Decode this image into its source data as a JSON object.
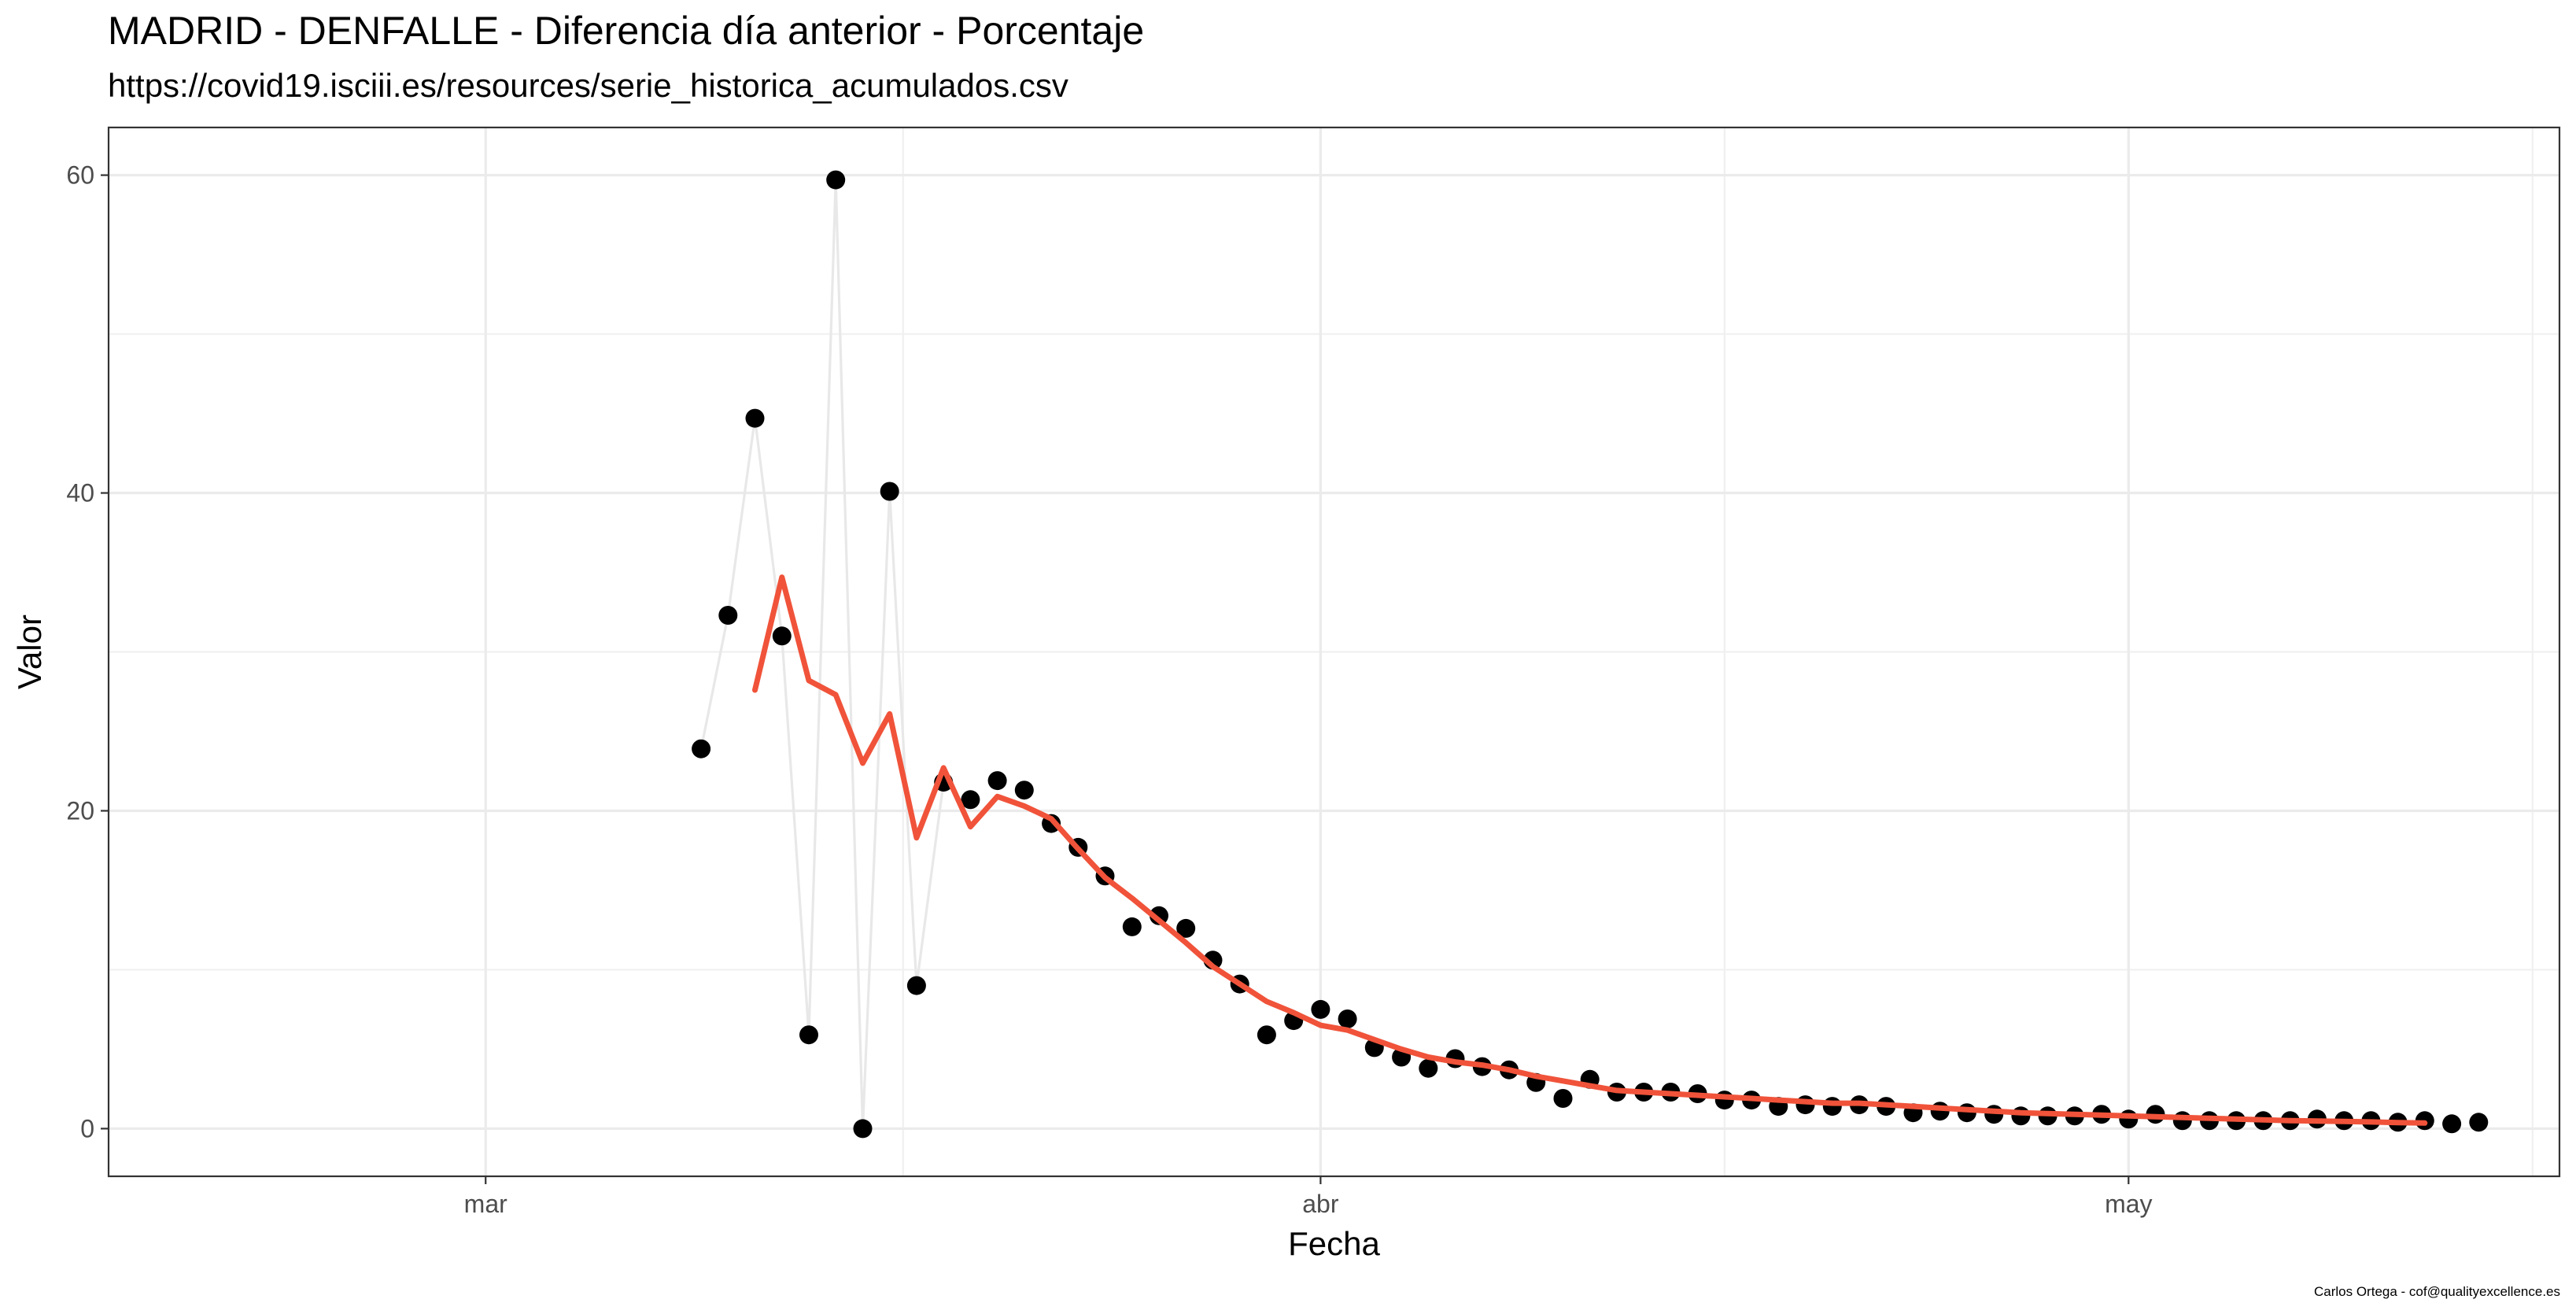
{
  "chart_data": {
    "type": "scatter",
    "title": "MADRID - DENFALLE - Diferencia día anterior - Porcentaje",
    "subtitle": "https://covid19.isciii.es/resources/serie_historica_acumulados.csv",
    "caption": "Carlos Ortega - cof@qualityexcellence.es",
    "xlabel": "Fecha",
    "ylabel": "Valor",
    "x_ticks": [
      {
        "label": "mar",
        "date": "2020-03-01"
      },
      {
        "label": "abr",
        "date": "2020-04-01"
      },
      {
        "label": "may",
        "date": "2020-05-01"
      }
    ],
    "y_ticks": [
      0,
      20,
      40,
      60
    ],
    "xlim": [
      "2020-02-16",
      "2020-05-17"
    ],
    "ylim": [
      -3,
      63
    ],
    "grid": true,
    "series": [
      {
        "kind": "points",
        "color": "#000000",
        "dates": [
          "2020-03-09",
          "2020-03-10",
          "2020-03-11",
          "2020-03-12",
          "2020-03-13",
          "2020-03-14",
          "2020-03-15",
          "2020-03-16",
          "2020-03-17",
          "2020-03-18",
          "2020-03-19",
          "2020-03-20",
          "2020-03-21",
          "2020-03-22",
          "2020-03-23",
          "2020-03-24",
          "2020-03-25",
          "2020-03-26",
          "2020-03-27",
          "2020-03-28",
          "2020-03-29",
          "2020-03-30",
          "2020-03-31",
          "2020-04-01",
          "2020-04-02",
          "2020-04-03",
          "2020-04-04",
          "2020-04-05",
          "2020-04-06",
          "2020-04-07",
          "2020-04-08",
          "2020-04-09",
          "2020-04-10",
          "2020-04-11",
          "2020-04-12",
          "2020-04-13",
          "2020-04-14",
          "2020-04-15",
          "2020-04-16",
          "2020-04-17",
          "2020-04-18",
          "2020-04-19",
          "2020-04-20",
          "2020-04-21",
          "2020-04-22",
          "2020-04-23",
          "2020-04-24",
          "2020-04-25",
          "2020-04-26",
          "2020-04-27",
          "2020-04-28",
          "2020-04-29",
          "2020-04-30",
          "2020-05-01",
          "2020-05-02",
          "2020-05-03",
          "2020-05-04",
          "2020-05-05",
          "2020-05-06",
          "2020-05-07",
          "2020-05-08",
          "2020-05-09",
          "2020-05-10",
          "2020-05-11",
          "2020-05-12",
          "2020-05-13",
          "2020-05-14"
        ],
        "values": [
          23.9,
          32.3,
          44.7,
          31.0,
          5.9,
          59.7,
          0.0,
          40.1,
          9.0,
          21.8,
          20.7,
          21.9,
          21.3,
          19.2,
          17.7,
          15.9,
          12.7,
          13.4,
          12.6,
          10.6,
          9.1,
          5.9,
          6.8,
          7.5,
          6.9,
          5.1,
          4.5,
          3.8,
          4.4,
          3.9,
          3.7,
          2.9,
          1.9,
          3.1,
          2.3,
          2.3,
          2.3,
          2.2,
          1.8,
          1.8,
          1.4,
          1.5,
          1.4,
          1.5,
          1.4,
          1.0,
          1.1,
          1.0,
          0.9,
          0.8,
          0.8,
          0.8,
          0.9,
          0.6,
          0.9,
          0.5,
          0.5,
          0.5,
          0.5,
          0.5,
          0.6,
          0.5,
          0.5,
          0.4,
          0.5,
          0.3,
          0.4
        ]
      },
      {
        "kind": "line",
        "color": "#e8e8e8",
        "dates": [
          "2020-03-09",
          "2020-03-10",
          "2020-03-11",
          "2020-03-12",
          "2020-03-13",
          "2020-03-14",
          "2020-03-15",
          "2020-03-16",
          "2020-03-17",
          "2020-03-18"
        ],
        "values": [
          23.9,
          32.3,
          44.7,
          31.0,
          5.9,
          59.7,
          0.0,
          40.1,
          9.0,
          21.8
        ]
      },
      {
        "kind": "line",
        "color": "#f0533a",
        "dates": [
          "2020-03-11",
          "2020-03-12",
          "2020-03-13",
          "2020-03-14",
          "2020-03-15",
          "2020-03-16",
          "2020-03-17",
          "2020-03-18",
          "2020-03-19",
          "2020-03-20",
          "2020-03-21",
          "2020-03-22",
          "2020-03-23",
          "2020-03-24",
          "2020-03-25",
          "2020-03-26",
          "2020-03-27",
          "2020-03-28",
          "2020-03-29",
          "2020-03-30",
          "2020-03-31",
          "2020-04-01",
          "2020-04-02",
          "2020-04-03",
          "2020-04-04",
          "2020-04-05",
          "2020-04-06",
          "2020-04-07",
          "2020-04-08",
          "2020-04-09",
          "2020-04-10",
          "2020-04-11",
          "2020-04-12",
          "2020-04-13",
          "2020-04-14",
          "2020-04-15",
          "2020-04-16",
          "2020-04-17",
          "2020-04-18",
          "2020-04-19",
          "2020-04-20",
          "2020-04-21",
          "2020-04-22",
          "2020-04-23",
          "2020-04-24",
          "2020-04-25",
          "2020-04-26",
          "2020-04-27",
          "2020-04-28",
          "2020-04-29",
          "2020-04-30",
          "2020-05-01",
          "2020-05-02",
          "2020-05-03",
          "2020-05-04",
          "2020-05-05",
          "2020-05-06",
          "2020-05-07",
          "2020-05-08",
          "2020-05-09",
          "2020-05-10",
          "2020-05-11",
          "2020-05-12"
        ],
        "values": [
          27.6,
          34.7,
          28.2,
          27.3,
          23.0,
          26.1,
          18.3,
          22.7,
          19.0,
          20.9,
          20.3,
          19.5,
          17.6,
          15.8,
          14.5,
          13.1,
          11.7,
          10.2,
          9.1,
          8.0,
          7.3,
          6.5,
          6.2,
          5.6,
          5.0,
          4.5,
          4.2,
          4.0,
          3.7,
          3.3,
          3.0,
          2.7,
          2.4,
          2.3,
          2.2,
          2.1,
          2.0,
          1.9,
          1.8,
          1.7,
          1.6,
          1.6,
          1.5,
          1.4,
          1.3,
          1.2,
          1.1,
          1.0,
          0.95,
          0.9,
          0.85,
          0.8,
          0.75,
          0.7,
          0.65,
          0.6,
          0.55,
          0.5,
          0.48,
          0.45,
          0.42,
          0.38,
          0.35
        ]
      }
    ]
  }
}
